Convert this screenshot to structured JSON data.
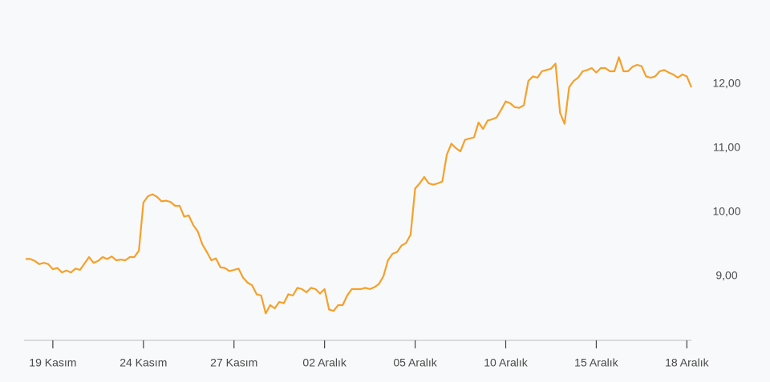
{
  "chart_data": {
    "type": "line",
    "categories": [
      null,
      null,
      null,
      null,
      null,
      null,
      "19 Kasım",
      null,
      null,
      null,
      null,
      null,
      null,
      null,
      null,
      null,
      null,
      null,
      null,
      null,
      null,
      null,
      null,
      null,
      null,
      null,
      "24 Kasım",
      null,
      null,
      null,
      null,
      null,
      null,
      null,
      null,
      null,
      null,
      null,
      null,
      null,
      null,
      null,
      null,
      null,
      null,
      null,
      "27 Kasım",
      null,
      null,
      null,
      null,
      null,
      null,
      null,
      null,
      null,
      null,
      null,
      null,
      null,
      null,
      null,
      null,
      null,
      null,
      null,
      "02 Aralık",
      null,
      null,
      null,
      null,
      null,
      null,
      null,
      null,
      null,
      null,
      null,
      null,
      null,
      null,
      null,
      null,
      null,
      null,
      null,
      "05 Aralık",
      null,
      null,
      null,
      null,
      null,
      null,
      null,
      null,
      null,
      null,
      null,
      null,
      null,
      null,
      null,
      null,
      null,
      null,
      null,
      "10 Aralık",
      null,
      null,
      null,
      null,
      null,
      null,
      null,
      null,
      null,
      null,
      null,
      null,
      null,
      null,
      null,
      null,
      null,
      null,
      null,
      "15 Aralık",
      null,
      null,
      null,
      null,
      null,
      null,
      null,
      null,
      null,
      null,
      null,
      null,
      null,
      null,
      null,
      null,
      null,
      null,
      null,
      "18 Aralık",
      null
    ],
    "values": [
      9.27,
      9.27,
      9.24,
      9.19,
      9.21,
      9.19,
      9.11,
      9.13,
      9.06,
      9.09,
      9.06,
      9.12,
      9.1,
      9.2,
      9.3,
      9.21,
      9.24,
      9.3,
      9.27,
      9.31,
      9.25,
      9.26,
      9.25,
      9.3,
      9.3,
      9.4,
      10.15,
      10.25,
      10.28,
      10.24,
      10.17,
      10.18,
      10.16,
      10.1,
      10.1,
      9.93,
      9.95,
      9.8,
      9.7,
      9.5,
      9.38,
      9.25,
      9.28,
      9.14,
      9.13,
      9.08,
      9.1,
      9.12,
      8.98,
      8.9,
      8.86,
      8.72,
      8.7,
      8.42,
      8.55,
      8.5,
      8.6,
      8.58,
      8.72,
      8.7,
      8.82,
      8.8,
      8.75,
      8.82,
      8.8,
      8.73,
      8.8,
      8.48,
      8.46,
      8.55,
      8.55,
      8.7,
      8.8,
      8.8,
      8.8,
      8.82,
      8.8,
      8.83,
      8.88,
      9.0,
      9.25,
      9.35,
      9.38,
      9.48,
      9.52,
      9.65,
      10.37,
      10.45,
      10.55,
      10.45,
      10.43,
      10.45,
      10.48,
      10.9,
      11.07,
      11.0,
      10.95,
      11.13,
      11.15,
      11.17,
      11.4,
      11.3,
      11.43,
      11.45,
      11.48,
      11.6,
      11.73,
      11.7,
      11.64,
      11.63,
      11.67,
      12.05,
      12.12,
      12.1,
      12.2,
      12.22,
      12.24,
      12.32,
      11.55,
      11.38,
      11.95,
      12.05,
      12.1,
      12.2,
      12.22,
      12.25,
      12.18,
      12.25,
      12.25,
      12.2,
      12.2,
      12.42,
      12.2,
      12.2,
      12.27,
      12.3,
      12.28,
      12.12,
      12.1,
      12.12,
      12.2,
      12.22,
      12.18,
      12.15,
      12.1,
      12.15,
      12.12,
      11.95
    ],
    "color": "#f5a02a",
    "ylim": [
      8,
      12.8
    ],
    "yticks": [
      {
        "value": 9,
        "label": "9,00"
      },
      {
        "value": 10,
        "label": "10,00"
      },
      {
        "value": 11,
        "label": "11,00"
      },
      {
        "value": 12,
        "label": "12,00"
      }
    ]
  }
}
